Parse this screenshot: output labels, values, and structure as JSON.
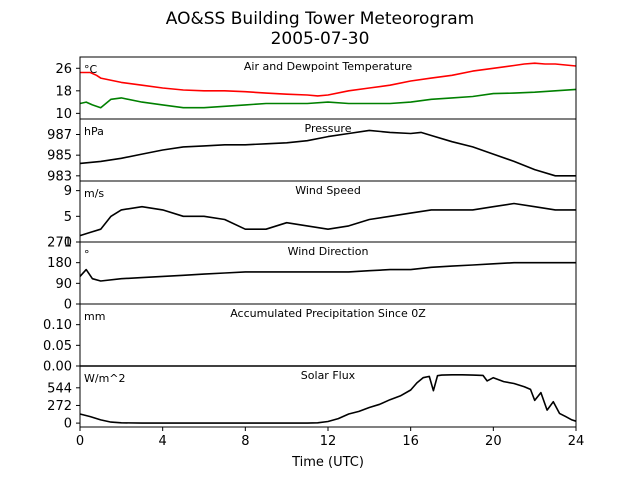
{
  "figure": {
    "title_line1": "AO&SS Building Tower Meteorogram",
    "title_line2": "2005-07-30",
    "xlabel": "Time (UTC)",
    "x_ticks": [
      0,
      4,
      8,
      12,
      16,
      20,
      24
    ],
    "xlim": [
      0,
      24
    ]
  },
  "chart_data": [
    {
      "type": "line",
      "title": "Air and Dewpoint Temperature",
      "unit": "°C",
      "ylim": [
        8,
        30
      ],
      "y_ticks": [
        10,
        18,
        26
      ],
      "series": [
        {
          "color": "#ff0000",
          "x": [
            0,
            0.5,
            0.8,
            1,
            2,
            3,
            4,
            5,
            6,
            7,
            8,
            9,
            10,
            11,
            11.5,
            12,
            13,
            14,
            15,
            16,
            17,
            18,
            19,
            20,
            21,
            21.5,
            22,
            22.5,
            23,
            24
          ],
          "y": [
            24.5,
            24.5,
            23.5,
            22.5,
            21,
            20,
            19,
            18.3,
            18,
            18,
            17.7,
            17.2,
            16.8,
            16.5,
            16.2,
            16.5,
            18,
            19,
            20,
            21.5,
            22.5,
            23.5,
            25,
            26,
            27,
            27.5,
            27.8,
            27.5,
            27.5,
            26.8
          ]
        },
        {
          "color": "#008000",
          "x": [
            0,
            0.3,
            0.6,
            1,
            1.5,
            2,
            3,
            4,
            5,
            6,
            7,
            8,
            9,
            10,
            11,
            12,
            13,
            14,
            15,
            16,
            17,
            18,
            19,
            20,
            21,
            22,
            23,
            24
          ],
          "y": [
            13.5,
            14,
            13,
            12,
            15,
            15.5,
            14,
            13,
            12,
            12,
            12.5,
            13,
            13.5,
            13.5,
            13.5,
            14,
            13.5,
            13.5,
            13.5,
            14,
            15,
            15.5,
            16,
            17,
            17.2,
            17.5,
            18,
            18.5
          ]
        }
      ]
    },
    {
      "type": "line",
      "title": "Pressure",
      "unit": "hPa",
      "ylim": [
        982.5,
        988.5
      ],
      "y_ticks": [
        983,
        985,
        987
      ],
      "series": [
        {
          "color": "#000000",
          "x": [
            0,
            1,
            2,
            3,
            4,
            5,
            6,
            7,
            8,
            9,
            10,
            11,
            12,
            13,
            14,
            15,
            16,
            16.5,
            17,
            18,
            19,
            20,
            21,
            22,
            23,
            24
          ],
          "y": [
            984.2,
            984.4,
            984.7,
            985.1,
            985.5,
            985.8,
            985.9,
            986.0,
            986.0,
            986.1,
            986.2,
            986.4,
            986.8,
            987.1,
            987.4,
            987.2,
            987.1,
            987.2,
            986.9,
            986.3,
            985.8,
            985.1,
            984.4,
            983.6,
            983.0,
            983.0
          ]
        }
      ]
    },
    {
      "type": "line",
      "title": "Wind Speed",
      "unit": "m/s",
      "ylim": [
        1,
        10.5
      ],
      "y_ticks": [
        1,
        5,
        9
      ],
      "series": [
        {
          "color": "#000000",
          "x": [
            0,
            0.5,
            1,
            1.5,
            2,
            3,
            4,
            5,
            6,
            7,
            8,
            9,
            10,
            11,
            12,
            13,
            14,
            15,
            16,
            17,
            18,
            19,
            20,
            21,
            22,
            23,
            24
          ],
          "y": [
            2,
            2.5,
            3,
            5,
            6,
            6.5,
            6,
            5,
            5,
            4.5,
            3,
            3,
            4,
            3.5,
            3,
            3.5,
            4.5,
            5,
            5.5,
            6,
            6,
            6,
            6.5,
            7,
            6.5,
            6,
            6
          ]
        }
      ]
    },
    {
      "type": "line",
      "title": "Wind Direction",
      "unit": "°",
      "ylim": [
        0,
        270
      ],
      "y_ticks": [
        0,
        90,
        180,
        270
      ],
      "series": [
        {
          "color": "#000000",
          "x": [
            0,
            0.3,
            0.6,
            1,
            2,
            3,
            4,
            5,
            6,
            7,
            8,
            9,
            10,
            11,
            12,
            13,
            14,
            15,
            16,
            17,
            18,
            19,
            20,
            21,
            22,
            23,
            24
          ],
          "y": [
            120,
            150,
            110,
            100,
            110,
            115,
            120,
            125,
            130,
            135,
            140,
            140,
            140,
            140,
            140,
            140,
            145,
            150,
            150,
            160,
            165,
            170,
            175,
            180,
            180,
            180,
            180
          ]
        }
      ]
    },
    {
      "type": "line",
      "title": "Accumulated Precipitation Since 0Z",
      "unit": "mm",
      "ylim": [
        0,
        0.15
      ],
      "y_ticks": [
        "0.00",
        "0.05",
        "0.10"
      ],
      "series": [
        {
          "color": "#000000",
          "x": [
            0,
            24
          ],
          "y": [
            0,
            0
          ]
        }
      ]
    },
    {
      "type": "line",
      "title": "Solar Flux",
      "unit": "W/m^2",
      "ylim": [
        -60,
        880
      ],
      "y_ticks": [
        0,
        272,
        544
      ],
      "series": [
        {
          "color": "#000000",
          "x": [
            0,
            0.5,
            1,
            1.5,
            2,
            3,
            4,
            6,
            8,
            10,
            11,
            11.5,
            12,
            12.5,
            13,
            13.5,
            14,
            14.5,
            15,
            15.5,
            16,
            16.3,
            16.6,
            16.9,
            17.1,
            17.3,
            17.5,
            18,
            18.5,
            19,
            19.5,
            19.7,
            20,
            20.5,
            21,
            21.5,
            21.8,
            22,
            22.3,
            22.6,
            22.9,
            23.2,
            23.5,
            23.8,
            24
          ],
          "y": [
            140,
            100,
            50,
            15,
            5,
            0,
            0,
            0,
            0,
            0,
            0,
            5,
            25,
            70,
            140,
            180,
            240,
            290,
            360,
            420,
            510,
            620,
            700,
            720,
            500,
            730,
            740,
            745,
            745,
            740,
            735,
            650,
            700,
            640,
            610,
            560,
            520,
            350,
            470,
            200,
            330,
            150,
            100,
            50,
            30
          ]
        }
      ]
    }
  ]
}
